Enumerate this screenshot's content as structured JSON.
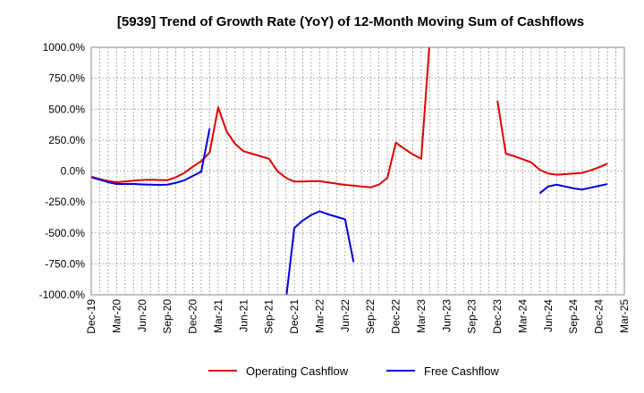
{
  "chart_data": {
    "type": "line",
    "title": "[5939]  Trend of Growth Rate (YoY) of 12-Month Moving Sum of Cashflows",
    "xlabel": "",
    "ylabel": "",
    "ylim": [
      -1000,
      1000
    ],
    "y_ticks": [
      1000,
      750,
      500,
      250,
      0,
      -250,
      -500,
      -750,
      -1000
    ],
    "y_tick_labels": [
      "1000.0%",
      "750.0%",
      "500.0%",
      "250.0%",
      "0.0%",
      "-250.0%",
      "-500.0%",
      "-750.0%",
      "-1000.0%"
    ],
    "x_start": "2019-12",
    "x_tick_labels": [
      "Dec-19",
      "Mar-20",
      "Jun-20",
      "Sep-20",
      "Dec-20",
      "Mar-21",
      "Jun-21",
      "Sep-21",
      "Dec-21",
      "Mar-22",
      "Jun-22",
      "Sep-22",
      "Dec-22",
      "Mar-23",
      "Jun-23",
      "Sep-23",
      "Dec-23",
      "Mar-24",
      "Jun-24",
      "Sep-24",
      "Dec-24",
      "Mar-25"
    ],
    "grid": true,
    "legend_position": "bottom",
    "series": [
      {
        "name": "Operating Cashflow",
        "color": "#e00000",
        "values": [
          -45,
          -65,
          -80,
          -90,
          -85,
          -78,
          -72,
          -70,
          -72,
          -74,
          -50,
          -15,
          35,
          80,
          150,
          515,
          320,
          220,
          160,
          140,
          120,
          100,
          0,
          -55,
          -85,
          -85,
          -82,
          -82,
          -92,
          -102,
          -112,
          -118,
          -125,
          -132,
          -110,
          -55,
          230,
          180,
          135,
          100,
          1050,
          null,
          null,
          null,
          null,
          null,
          null,
          null,
          570,
          140,
          120,
          95,
          70,
          10,
          -20,
          -30,
          -25,
          -20,
          -15,
          5,
          30,
          60
        ]
      },
      {
        "name": "Free Cashflow",
        "color": "#0000dd",
        "values": [
          -50,
          -70,
          -90,
          -105,
          -105,
          -105,
          -108,
          -110,
          -112,
          -110,
          -95,
          -75,
          -40,
          -5,
          345,
          null,
          null,
          null,
          null,
          null,
          null,
          null,
          null,
          -1050,
          -460,
          -400,
          -355,
          -325,
          -350,
          -370,
          -390,
          -735,
          null,
          null,
          null,
          null,
          null,
          null,
          null,
          null,
          null,
          null,
          null,
          null,
          null,
          null,
          null,
          null,
          null,
          null,
          null,
          null,
          null,
          -180,
          -125,
          -110,
          -125,
          -140,
          -150,
          -135,
          -120,
          -105
        ]
      }
    ]
  }
}
